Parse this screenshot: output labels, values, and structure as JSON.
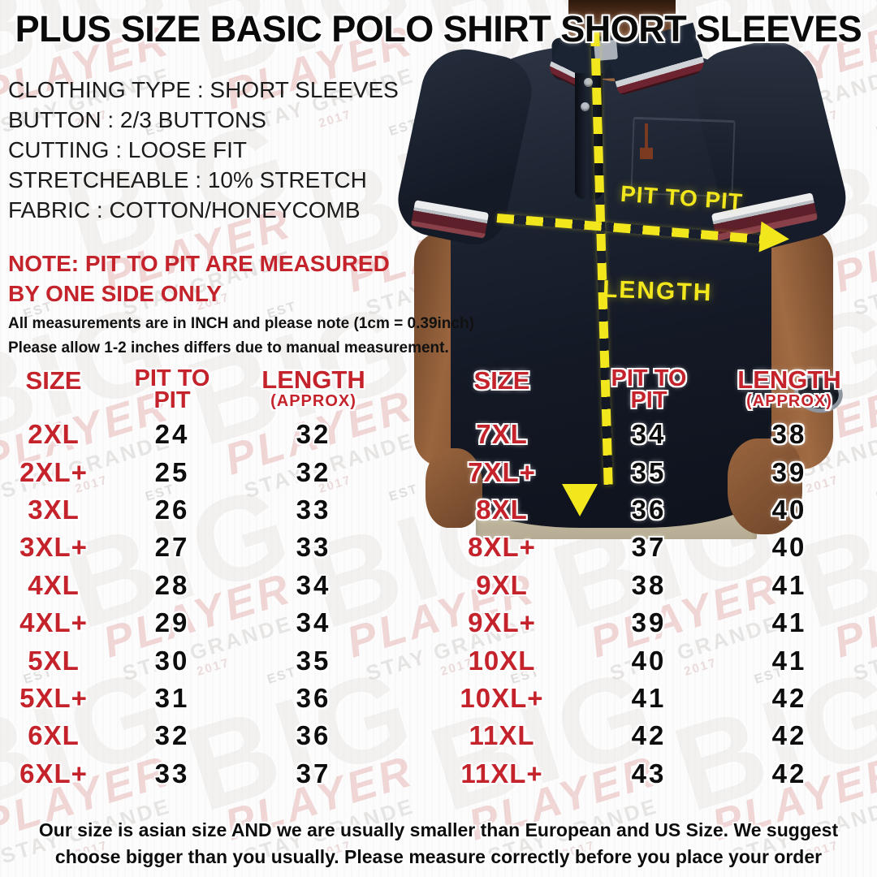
{
  "page": {
    "title": "PLUS SIZE BASIC POLO SHIRT SHORT SLEEVES"
  },
  "specs": [
    "CLOTHING TYPE : SHORT SLEEVES",
    "BUTTON : 2/3 BUTTONS",
    "CUTTING : LOOSE FIT",
    "STRETCHEABLE : 10% STRETCH",
    "FABRIC : COTTON/HONEYCOMB"
  ],
  "note": {
    "line1": "NOTE: PIT TO PIT ARE MEASURED",
    "line2": "BY ONE SIDE ONLY"
  },
  "measurement_info": [
    "All measurements are in INCH and please note (1cm = 0.39inch)",
    "Please allow 1-2 inches differs due to manual measurement."
  ],
  "diagram": {
    "pit_to_pit_label": "PIT TO PIT",
    "length_label": "LENGTH"
  },
  "tables": {
    "headers": {
      "size": "SIZE",
      "pit_line1": "PIT TO",
      "pit_line2": "PIT",
      "length": "LENGTH",
      "length_approx": "(APPROX)"
    },
    "left_rows": [
      {
        "size": "2XL",
        "pit": 24,
        "length": 32
      },
      {
        "size": "2XL+",
        "pit": 25,
        "length": 32
      },
      {
        "size": "3XL",
        "pit": 26,
        "length": 33
      },
      {
        "size": "3XL+",
        "pit": 27,
        "length": 33
      },
      {
        "size": "4XL",
        "pit": 28,
        "length": 34
      },
      {
        "size": "4XL+",
        "pit": 29,
        "length": 34
      },
      {
        "size": "5XL",
        "pit": 30,
        "length": 35
      },
      {
        "size": "5XL+",
        "pit": 31,
        "length": 36
      },
      {
        "size": "6XL",
        "pit": 32,
        "length": 36
      },
      {
        "size": "6XL+",
        "pit": 33,
        "length": 37
      }
    ],
    "right_rows": [
      {
        "size": "7XL",
        "pit": 34,
        "length": 38
      },
      {
        "size": "7XL+",
        "pit": 35,
        "length": 39
      },
      {
        "size": "8XL",
        "pit": 36,
        "length": 40
      },
      {
        "size": "8XL+",
        "pit": 37,
        "length": 40
      },
      {
        "size": "9XL",
        "pit": 38,
        "length": 41
      },
      {
        "size": "9XL+",
        "pit": 39,
        "length": 41
      },
      {
        "size": "10XL",
        "pit": 40,
        "length": 41
      },
      {
        "size": "10XL+",
        "pit": 41,
        "length": 42
      },
      {
        "size": "11XL",
        "pit": 42,
        "length": 42
      },
      {
        "size": "11XL+",
        "pit": 43,
        "length": 42
      }
    ]
  },
  "footer": {
    "line1": "Our size is asian size AND we are usually smaller than European and US Size. We suggest",
    "line2": "choose bigger than you usually. Please measure correctly before you place your order"
  },
  "watermark": {
    "big": "BIG",
    "player": "PLAYER",
    "stay": "STAY GRANDE",
    "est": "EST",
    "year": "2017"
  },
  "colors": {
    "accent_red": "#c4232b",
    "highlight_yellow": "#f2e71c",
    "title_black": "#0a0a0a",
    "shirt_navy": "#161c29",
    "pants_khaki": "#c9c0a9",
    "skin_brown": "#9a653e"
  }
}
